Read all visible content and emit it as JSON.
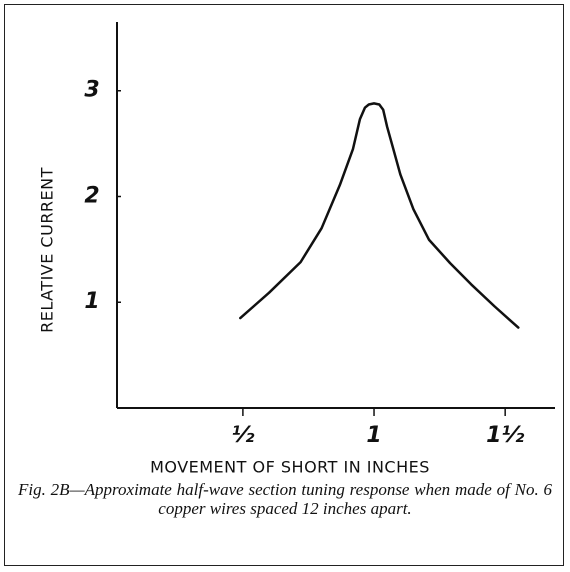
{
  "chart_data": {
    "type": "line",
    "x_label": "MOVEMENT OF SHORT IN INCHES",
    "y_label": "RELATIVE CURRENT",
    "caption": "Fig. 2B—Approximate half-wave section tuning response when made of No. 6 copper wires spaced 12 inches apart.",
    "x": [
      0.49,
      0.6,
      0.72,
      0.8,
      0.87,
      0.92,
      0.946,
      0.965,
      0.98,
      1.0,
      1.02,
      1.035,
      1.05,
      1.07,
      1.1,
      1.15,
      1.21,
      1.29,
      1.37,
      1.46,
      1.55
    ],
    "series": [
      {
        "color": "#111111",
        "values": [
          0.85,
          1.09,
          1.38,
          1.7,
          2.11,
          2.45,
          2.73,
          2.84,
          2.87,
          2.88,
          2.87,
          2.82,
          2.66,
          2.48,
          2.21,
          1.88,
          1.59,
          1.37,
          1.17,
          0.96,
          0.76
        ]
      }
    ],
    "xlim": [
      0.02,
      1.69
    ],
    "ylim": [
      0,
      3.65
    ],
    "xticks": [
      {
        "value": 0.5,
        "label": "½"
      },
      1,
      {
        "value": 1.5,
        "label": "1½"
      }
    ],
    "yticks": [
      1,
      2,
      3
    ]
  }
}
